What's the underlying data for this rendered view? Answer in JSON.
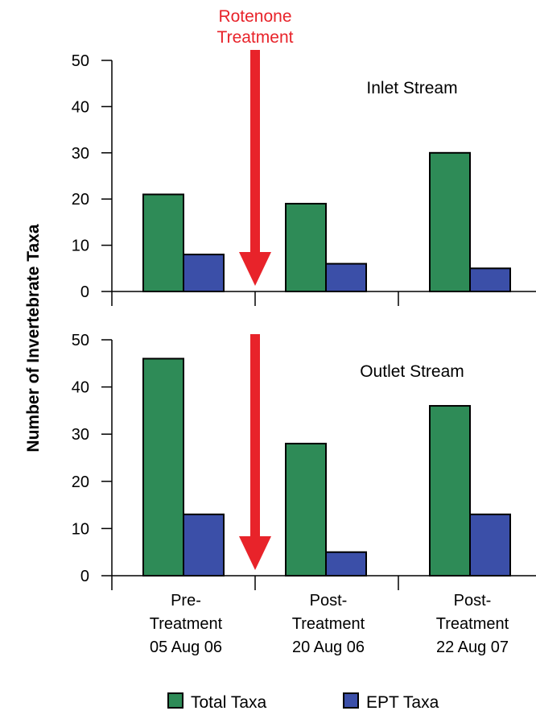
{
  "chart_data": {
    "type": "bar",
    "ylabel": "Number of Invertebrate Taxa",
    "ylim": [
      0,
      50
    ],
    "yticks": [
      0,
      10,
      20,
      30,
      40,
      50
    ],
    "categories": [
      [
        "Pre-",
        "Treatment",
        "05 Aug 06"
      ],
      [
        "Post-",
        "Treatment",
        "20 Aug 06"
      ],
      [
        "Post-",
        "Treatment",
        "22 Aug 07"
      ]
    ],
    "annotation": {
      "lines": [
        "Rotenone",
        "Treatment"
      ],
      "color": "#e8232a"
    },
    "legend": {
      "placement": "bottom",
      "entries": [
        {
          "name": "Total Taxa",
          "color": "#2e8b57"
        },
        {
          "name": "EPT Taxa",
          "color": "#3b4fa8"
        }
      ]
    },
    "panels": [
      {
        "label": "Inlet Stream",
        "series": [
          {
            "name": "Total Taxa",
            "values": [
              21,
              19,
              30
            ]
          },
          {
            "name": "EPT Taxa",
            "values": [
              8,
              6,
              5
            ]
          }
        ]
      },
      {
        "label": "Outlet Stream",
        "series": [
          {
            "name": "Total Taxa",
            "values": [
              46,
              28,
              36
            ]
          },
          {
            "name": "EPT Taxa",
            "values": [
              13,
              5,
              13
            ]
          }
        ]
      }
    ]
  }
}
